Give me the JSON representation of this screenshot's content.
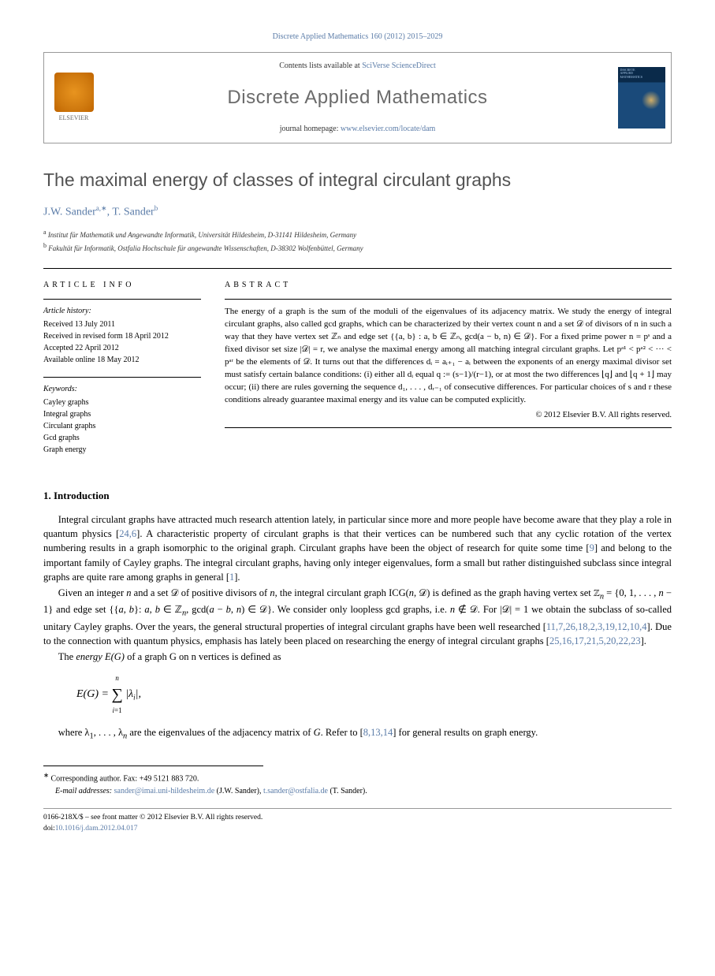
{
  "journal_ref": "Discrete Applied Mathematics 160 (2012) 2015–2029",
  "header": {
    "contents_prefix": "Contents lists available at ",
    "contents_link": "SciVerse ScienceDirect",
    "journal_name": "Discrete Applied Mathematics",
    "homepage_prefix": "journal homepage: ",
    "homepage_url": "www.elsevier.com/locate/dam",
    "publisher_label": "ELSEVIER",
    "cover_line1": "DISCRETE",
    "cover_line2": "APPLIED",
    "cover_line3": "MATHEMATICS"
  },
  "title": "The maximal energy of classes of integral circulant graphs",
  "authors_html": "J.W. Sander",
  "author1": "J.W. Sander",
  "author1_sup": "a,∗",
  "author_sep": ", ",
  "author2": "T. Sander",
  "author2_sup": "b",
  "affiliations": {
    "a_sup": "a",
    "a": " Institut für Mathematik und Angewandte Informatik, Universität Hildesheim, D-31141 Hildesheim, Germany",
    "b_sup": "b",
    "b": " Fakultät für Informatik, Ostfalia Hochschule für angewandte Wissenschaften, D-38302 Wolfenbüttel, Germany"
  },
  "article_info": {
    "heading": "ARTICLE INFO",
    "history_label": "Article history:",
    "received": "Received 13 July 2011",
    "revised": "Received in revised form 18 April 2012",
    "accepted": "Accepted 22 April 2012",
    "online": "Available online 18 May 2012",
    "keywords_label": "Keywords:",
    "kw1": "Cayley graphs",
    "kw2": "Integral graphs",
    "kw3": "Circulant graphs",
    "kw4": "Gcd graphs",
    "kw5": "Graph energy"
  },
  "abstract": {
    "heading": "ABSTRACT",
    "text": "The energy of a graph is the sum of the moduli of the eigenvalues of its adjacency matrix. We study the energy of integral circulant graphs, also called gcd graphs, which can be characterized by their vertex count n and a set 𝒟 of divisors of n in such a way that they have vertex set ℤₙ and edge set {{a, b} : a, b ∈ ℤₙ, gcd(a − b, n) ∈ 𝒟}. For a fixed prime power n = pˢ and a fixed divisor set size |𝒟| = r, we analyse the maximal energy among all matching integral circulant graphs. Let pᵃ¹ < pᵃ² < ··· < pᵃʳ be the elements of 𝒟. It turns out that the differences dᵢ = aᵢ₊₁ − aᵢ between the exponents of an energy maximal divisor set must satisfy certain balance conditions: (i) either all dᵢ equal q := (s−1)/(r−1), or at most the two differences ⌊q⌋ and ⌊q + 1⌋ may occur; (ii) there are rules governing the sequence d₁, . . . , dᵣ₋₁ of consecutive differences. For particular choices of s and r these conditions already guarantee maximal energy and its value can be computed explicitly.",
    "copyright": "© 2012 Elsevier B.V. All rights reserved."
  },
  "section1": {
    "heading": "1. Introduction",
    "p1": "Integral circulant graphs have attracted much research attention lately, in particular since more and more people have become aware that they play a role in quantum physics [24,6]. A characteristic property of circulant graphs is that their vertices can be numbered such that any cyclic rotation of the vertex numbering results in a graph isomorphic to the original graph. Circulant graphs have been the object of research for quite some time [9] and belong to the important family of Cayley graphs. The integral circulant graphs, having only integer eigenvalues, form a small but rather distinguished subclass since integral graphs are quite rare among graphs in general [1].",
    "p2": "Given an integer n and a set 𝒟 of positive divisors of n, the integral circulant graph ICG(n, 𝒟) is defined as the graph having vertex set ℤₙ = {0, 1, . . . , n − 1} and edge set {{a, b}: a, b ∈ ℤₙ, gcd(a − b, n) ∈ 𝒟}. We consider only loopless gcd graphs, i.e. n ∉ 𝒟. For |𝒟| = 1 we obtain the subclass of so-called unitary Cayley graphs. Over the years, the general structural properties of integral circulant graphs have been well researched [11,7,26,18,2,3,19,12,10,4]. Due to the connection with quantum physics, emphasis has lately been placed on researching the energy of integral circulant graphs [25,16,17,21,5,20,22,23].",
    "p3_prefix": "The ",
    "p3_energy": "energy E(G)",
    "p3_rest": " of a graph G on n vertices is defined as",
    "equation": "E(G) = Σᵢ₌₁ⁿ |λᵢ|,",
    "p4": "where λ₁, . . . , λₙ are the eigenvalues of the adjacency matrix of G. Refer to [8,13,14] for general results on graph energy."
  },
  "footnotes": {
    "corr_sup": "∗",
    "corr": " Corresponding author. Fax: +49 5121 883 720.",
    "email_label": "E-mail addresses: ",
    "email1": "sander@imai.uni-hildesheim.de",
    "email1_who": " (J.W. Sander), ",
    "email2": "t.sander@ostfalia.de",
    "email2_who": " (T. Sander)."
  },
  "footer": {
    "line1": "0166-218X/$ – see front matter © 2012 Elsevier B.V. All rights reserved.",
    "doi_prefix": "doi:",
    "doi": "10.1016/j.dam.2012.04.017"
  },
  "colors": {
    "link": "#5b7ca8",
    "title_gray": "#525252",
    "text": "#000000",
    "elsevier_orange": "#e8941f",
    "cover_navy": "#0a2a4a"
  },
  "refs": {
    "r24_6": "24,6",
    "r9": "9",
    "r1": "1",
    "r_long": "11,7,26,18,2,3,19,12,10,4",
    "r_energy": "25,16,17,21,5,20,22,23",
    "r8_13_14": "8,13,14"
  }
}
